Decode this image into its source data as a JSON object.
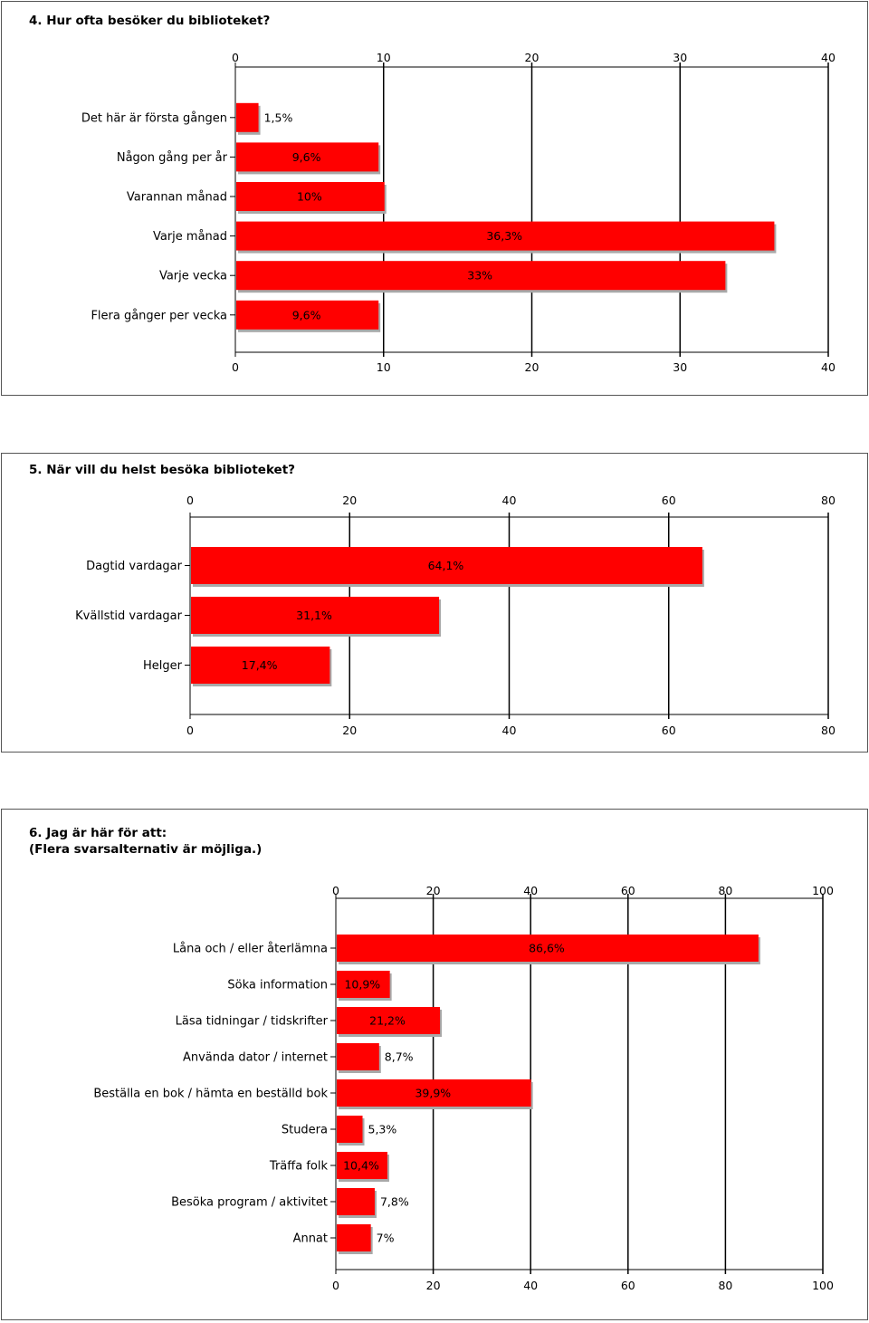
{
  "charts": [
    {
      "type": "bar",
      "orientation": "horizontal",
      "title": "4. Hur ofta besöker du biblioteket?",
      "categories": [
        "Det här är första gången",
        "Någon gång per år",
        "Varannan månad",
        "Varje månad",
        "Varje vecka",
        "Flera gånger per vecka"
      ],
      "values": [
        1.5,
        9.6,
        10,
        36.3,
        33,
        9.6
      ],
      "value_labels": [
        "1,5%",
        "9,6%",
        "10%",
        "36,3%",
        "33%",
        "9,6%"
      ],
      "xlim": [
        0,
        40
      ],
      "ticks": [
        0,
        10,
        20,
        30,
        40
      ],
      "grid": true,
      "bar_color": "#ff0000"
    },
    {
      "type": "bar",
      "orientation": "horizontal",
      "title": "5. När vill du helst besöka biblioteket?",
      "categories": [
        "Dagtid vardagar",
        "Kvällstid vardagar",
        "Helger"
      ],
      "values": [
        64.1,
        31.1,
        17.4
      ],
      "value_labels": [
        "64,1%",
        "31,1%",
        "17,4%"
      ],
      "xlim": [
        0,
        80
      ],
      "ticks": [
        0,
        20,
        40,
        60,
        80
      ],
      "grid": true,
      "bar_color": "#ff0000"
    },
    {
      "type": "bar",
      "orientation": "horizontal",
      "title": "6. Jag är här för att:\n(Flera svarsalternativ är möjliga.)",
      "categories": [
        "Låna och / eller återlämna",
        "Söka information",
        "Läsa tidningar / tidskrifter",
        "Använda dator / internet",
        "Beställa en bok / hämta en beställd bok",
        "Studera",
        "Träffa folk",
        "Besöka program / aktivitet",
        "Annat"
      ],
      "values": [
        86.6,
        10.9,
        21.2,
        8.7,
        39.9,
        5.3,
        10.4,
        7.8,
        7
      ],
      "value_labels": [
        "86,6%",
        "10,9%",
        "21,2%",
        "8,7%",
        "39,9%",
        "5,3%",
        "10,4%",
        "7,8%",
        "7%"
      ],
      "xlim": [
        0,
        100
      ],
      "ticks": [
        0,
        20,
        40,
        60,
        80,
        100
      ],
      "grid": true,
      "bar_color": "#ff0000"
    }
  ]
}
